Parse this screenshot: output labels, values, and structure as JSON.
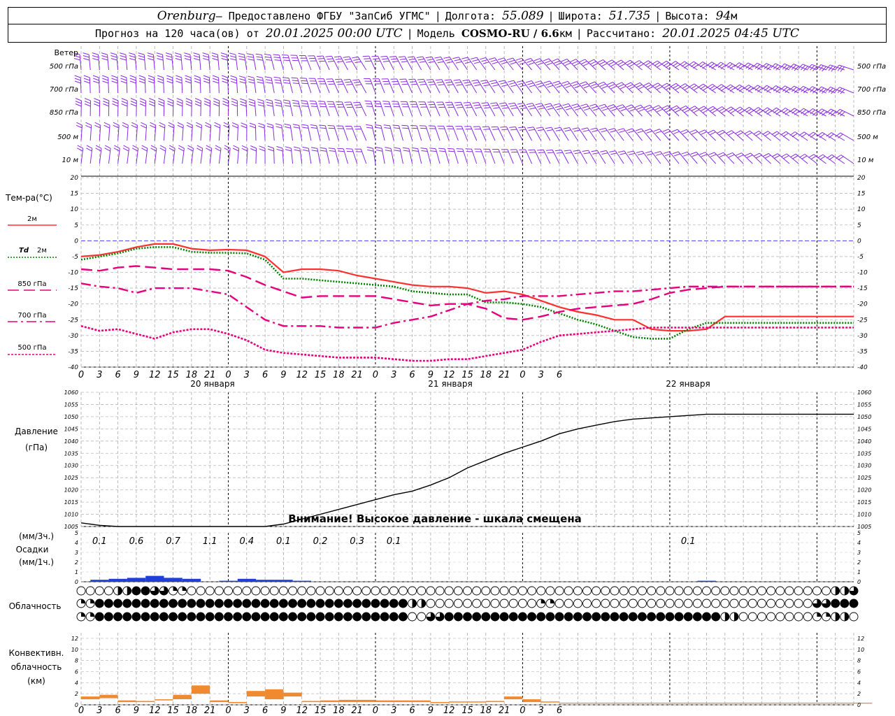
{
  "header": {
    "station": "Orenburg",
    "provided_by": " — Предоставлено ФГБУ \"ЗапСиб УГМС\"",
    "lon_label": "Долгота:",
    "lon_value": "55.089",
    "lat_label": "Широта:",
    "lat_value": "51.735",
    "alt_label": "Высота:",
    "alt_value": "94",
    "alt_unit": "м",
    "forecast_label": "Прогноз на 120 часа(ов) от",
    "forecast_from": "20.01.2025 00:00 UTC",
    "model_label": "Модель",
    "model_name": "COSMO-RU / 6.6",
    "model_unit": "км",
    "calc_label": "Рассчитано:",
    "calc_time": "20.01.2025 04:45 UTC"
  },
  "hour_ticks": [
    "0",
    "3",
    "6",
    "9",
    "12",
    "15",
    "18",
    "21",
    "0",
    "3",
    "6",
    "9",
    "12",
    "15",
    "18",
    "21",
    "0",
    "3",
    "6",
    "9",
    "12",
    "15",
    "18",
    "21",
    "0",
    "3",
    "6"
  ],
  "day_labels": [
    "20 января",
    "21 января",
    "22 января"
  ],
  "colors": {
    "t2m": "#ff3030",
    "td2m": "#008000",
    "t850": "#e6007e",
    "t700": "#e6007e",
    "t500": "#e6007e",
    "wind": "#8a2be2",
    "precip": "#1f3fd8",
    "conv": "#f08a30",
    "zero": "#4040ff"
  },
  "wind_panel": {
    "title": "Ветер",
    "levels": [
      "500 гПа",
      "700 гПа",
      "850 гПа",
      "500 м",
      "10  м"
    ]
  },
  "temp_panel": {
    "title": "Тем-ра(°С)",
    "legend": [
      {
        "name": "2м"
      },
      {
        "prefix": "Td",
        "name": "2м"
      },
      {
        "name": "850 гПа"
      },
      {
        "name": "700 гПа"
      },
      {
        "name": "500 гПа"
      }
    ],
    "yticks": [
      "20",
      "15",
      "10",
      "5",
      "0",
      "-5",
      "-10",
      "-15",
      "-20",
      "-25",
      "-30",
      "-35",
      "-40"
    ]
  },
  "pressure_panel": {
    "title_line1": "Давление",
    "title_line2": "(гПа)",
    "warning": "Внимание! Высокое давление - шкала смещена",
    "yticks": [
      "1060",
      "1055",
      "1050",
      "1045",
      "1040",
      "1035",
      "1030",
      "1025",
      "1020",
      "1015",
      "1010",
      "1005"
    ]
  },
  "precip_panel": {
    "label1": "(мм/3ч.)",
    "label2": "Осадки",
    "label3": "(мм/1ч.)",
    "yticks": [
      "5",
      "4",
      "3",
      "2",
      "1",
      "0"
    ],
    "totals": [
      {
        "hour": 3,
        "text": "0.1"
      },
      {
        "hour": 9,
        "text": "0.6"
      },
      {
        "hour": 15,
        "text": "0.7"
      },
      {
        "hour": 21,
        "text": "1.1"
      },
      {
        "hour": 27,
        "text": "0.4"
      },
      {
        "hour": 33,
        "text": "0.1"
      },
      {
        "hour": 39,
        "text": "0.2"
      },
      {
        "hour": 45,
        "text": "0.3"
      },
      {
        "hour": 51,
        "text": "0.1"
      },
      {
        "hour": 99,
        "text": "0.1"
      }
    ]
  },
  "cloud_panel": {
    "title": "Облачность"
  },
  "conv_panel": {
    "label1": "Конвективн.",
    "label2": "облачность",
    "label3": "(км)",
    "yticks": [
      "12",
      "10",
      "8",
      "6",
      "4",
      "2",
      "0"
    ]
  },
  "chart_data": {
    "x_unit": "hours since 20.01.2025 00:00 UTC",
    "x_range": [
      0,
      126
    ],
    "temperature": {
      "type": "line",
      "ylim": [
        -40,
        20
      ],
      "series": [
        {
          "name": "2м",
          "x": [
            0,
            3,
            6,
            9,
            12,
            15,
            18,
            21,
            24,
            27,
            30,
            33,
            36,
            39,
            42,
            45,
            48,
            51,
            54,
            57,
            60,
            63,
            66,
            69,
            72,
            75,
            78,
            81,
            84,
            87,
            90,
            93,
            96,
            99,
            102,
            105,
            108,
            111,
            114,
            117,
            120,
            123,
            126
          ],
          "values": [
            -5,
            -4.5,
            -3.5,
            -2,
            -1,
            -1,
            -2.5,
            -3,
            -2.8,
            -3,
            -5,
            -10,
            -9,
            -9,
            -9.5,
            -11,
            -12,
            -13,
            -14,
            -14.5,
            -14.5,
            -15,
            -16.5,
            -16,
            -17,
            -19,
            -21,
            -22.5,
            -23.5,
            -25,
            -25,
            -28,
            -28.5,
            -28.5,
            -28,
            -24,
            -24,
            -24,
            -24,
            -24,
            -24,
            -24,
            -24
          ]
        },
        {
          "name": "Td 2м",
          "x": [
            0,
            3,
            6,
            9,
            12,
            15,
            18,
            21,
            24,
            27,
            30,
            33,
            36,
            39,
            42,
            45,
            48,
            51,
            54,
            57,
            60,
            63,
            66,
            69,
            72,
            75,
            78,
            81,
            84,
            87,
            90,
            93,
            96,
            99,
            102,
            105,
            108,
            111,
            114,
            117,
            120,
            123,
            126
          ],
          "values": [
            -6,
            -5,
            -4,
            -2.5,
            -2,
            -2,
            -3.5,
            -3.8,
            -3.8,
            -4,
            -6,
            -12,
            -12,
            -12.5,
            -13,
            -13.5,
            -14,
            -14.5,
            -16,
            -16.5,
            -17,
            -17,
            -19.5,
            -19.5,
            -20,
            -21,
            -23,
            -25,
            -26.5,
            -28.5,
            -30.5,
            -31,
            -31,
            -28,
            -26,
            -26,
            -26,
            -26,
            -26,
            -26,
            -26,
            -26,
            -26
          ]
        },
        {
          "name": "850 гПа",
          "x": [
            0,
            3,
            6,
            9,
            12,
            15,
            18,
            21,
            24,
            27,
            30,
            33,
            36,
            39,
            42,
            45,
            48,
            51,
            54,
            57,
            60,
            63,
            66,
            69,
            72,
            75,
            78,
            81,
            84,
            87,
            90,
            93,
            96,
            99,
            102,
            105,
            108,
            111,
            114,
            117,
            120,
            123,
            126
          ],
          "values": [
            -9,
            -9.5,
            -8.5,
            -8,
            -8.5,
            -9,
            -9,
            -9,
            -9.5,
            -11.5,
            -14,
            -16,
            -18,
            -17.5,
            -17.5,
            -17.5,
            -17.5,
            -18.5,
            -19.5,
            -20.5,
            -20,
            -20,
            -21.5,
            -24.5,
            -25,
            -24,
            -22.5,
            -21.5,
            -21,
            -20.5,
            -20,
            -18.5,
            -16.5,
            -15.5,
            -15,
            -14.5,
            -14.5,
            -14.5,
            -14.5,
            -14.5,
            -14.5,
            -14.5,
            -14.5
          ]
        },
        {
          "name": "700 гПа",
          "x": [
            0,
            3,
            6,
            9,
            12,
            15,
            18,
            21,
            24,
            27,
            30,
            33,
            36,
            39,
            42,
            45,
            48,
            51,
            54,
            57,
            60,
            63,
            66,
            69,
            72,
            75,
            78,
            81,
            84,
            87,
            90,
            93,
            96,
            99,
            102,
            105,
            108,
            111,
            114,
            117,
            120,
            123,
            126
          ],
          "values": [
            -13.5,
            -14.5,
            -15,
            -16.5,
            -15,
            -15,
            -15,
            -16,
            -17,
            -21,
            -25,
            -27,
            -27,
            -27,
            -27.5,
            -27.5,
            -27.5,
            -26,
            -25,
            -24,
            -22,
            -20,
            -19,
            -18.5,
            -17.5,
            -17.5,
            -17.5,
            -17,
            -16.5,
            -16,
            -16,
            -15.5,
            -15,
            -14.5,
            -14.5,
            -14.5,
            -14.5,
            -14.5,
            -14.5,
            -14.5,
            -14.5,
            -14.5,
            -14.5
          ]
        },
        {
          "name": "500 гПа",
          "x": [
            0,
            3,
            6,
            9,
            12,
            15,
            18,
            21,
            24,
            27,
            30,
            33,
            36,
            39,
            42,
            45,
            48,
            51,
            54,
            57,
            60,
            63,
            66,
            69,
            72,
            75,
            78,
            81,
            84,
            87,
            90,
            93,
            96,
            99,
            102,
            105,
            108,
            111,
            114,
            117,
            120,
            123,
            126
          ],
          "values": [
            -27,
            -28.5,
            -28,
            -29.5,
            -31,
            -29,
            -28,
            -28,
            -29.5,
            -31.5,
            -34.5,
            -35.5,
            -36,
            -36.5,
            -37,
            -37,
            -37,
            -37.5,
            -38,
            -38,
            -37.5,
            -37.5,
            -36.5,
            -35.5,
            -34.5,
            -32,
            -30,
            -29.5,
            -29,
            -28.5,
            -28,
            -27.5,
            -27.5,
            -27.5,
            -27.5,
            -27.5,
            -27.5,
            -27.5,
            -27.5,
            -27.5,
            -27.5,
            -27.5,
            -27.5
          ]
        }
      ]
    },
    "pressure": {
      "type": "line",
      "ylim": [
        1005,
        1060
      ],
      "series": [
        {
          "name": "Давление",
          "x": [
            0,
            3,
            6,
            9,
            12,
            15,
            18,
            21,
            24,
            27,
            30,
            33,
            36,
            39,
            42,
            45,
            48,
            51,
            54,
            57,
            60,
            63,
            66,
            69,
            72,
            75,
            78,
            81,
            84,
            87,
            90,
            93,
            96,
            99,
            102,
            105,
            108,
            111,
            114,
            117,
            120,
            123,
            126
          ],
          "values": [
            1006.5,
            1005.5,
            1005,
            1004.5,
            1004,
            1003.5,
            1003.5,
            1003.5,
            1003.5,
            1003,
            1004,
            1006,
            1008,
            1010,
            1012,
            1014,
            1016,
            1018,
            1019.5,
            1022,
            1025,
            1029,
            1032,
            1035,
            1037.5,
            1040,
            1043,
            1045,
            1046.5,
            1048,
            1049,
            1049.5,
            1050,
            1050.5,
            1051,
            1051,
            1051,
            1051,
            1051,
            1051,
            1051,
            1051,
            1051
          ]
        }
      ]
    },
    "precipitation_hourly": {
      "type": "bar",
      "ylim": [
        0,
        5
      ],
      "x": [
        0,
        3,
        6,
        9,
        12,
        15,
        18,
        21,
        24,
        27,
        30,
        33,
        36,
        39,
        42,
        45,
        48,
        51,
        54,
        57,
        60,
        63,
        66,
        69,
        72,
        75,
        78,
        81,
        84,
        87,
        90,
        93,
        96,
        99,
        102,
        105,
        108,
        111,
        114,
        117,
        120,
        123,
        126
      ],
      "values": [
        0,
        0.2,
        0.3,
        0.4,
        0.6,
        0.4,
        0.3,
        0,
        0.1,
        0.3,
        0.2,
        0.2,
        0.1,
        0,
        0,
        0,
        0,
        0,
        0,
        0,
        0,
        0,
        0,
        0,
        0,
        0,
        0,
        0,
        0,
        0,
        0,
        0,
        0,
        0,
        0.1,
        0,
        0,
        0,
        0,
        0,
        0,
        0,
        0
      ]
    },
    "cloud_cover": {
      "type": "table",
      "rows": [
        "low",
        "middle",
        "high"
      ],
      "x": [
        0,
        3,
        6,
        9,
        12,
        15,
        18,
        21,
        24,
        27,
        30,
        33,
        36,
        39,
        42,
        45,
        48,
        51,
        54,
        57,
        60,
        63,
        66,
        69,
        72,
        75,
        78,
        81,
        84,
        87,
        90,
        93,
        96,
        99,
        102,
        105,
        108,
        111,
        114,
        117,
        120,
        123,
        126
      ],
      "fraction_per_row": [
        [
          0,
          0,
          0.5,
          1,
          0.75,
          0.25,
          0,
          0,
          0,
          0,
          0,
          0,
          0,
          0,
          0,
          0,
          0,
          0,
          0,
          0,
          0,
          0,
          0,
          0,
          0,
          0,
          0,
          0,
          0,
          0,
          0,
          0,
          0,
          0,
          0,
          0,
          0,
          0,
          0,
          0,
          0,
          0.5,
          0.75
        ],
        [
          0.25,
          1,
          1,
          1,
          1,
          1,
          1,
          1,
          1,
          1,
          1,
          1,
          1,
          1,
          1,
          1,
          1,
          1,
          0.5,
          0,
          0,
          0,
          0,
          0,
          0,
          0.25,
          0,
          0,
          0,
          0,
          0,
          0,
          0,
          0,
          0,
          0,
          0,
          0,
          0,
          0,
          0.75,
          1,
          1
        ],
        [
          0.25,
          1,
          1,
          1,
          1,
          1,
          1,
          1,
          1,
          1,
          1,
          1,
          1,
          1,
          1,
          1,
          1,
          1,
          0,
          0.75,
          1,
          1,
          1,
          1,
          1,
          1,
          1,
          1,
          1,
          1,
          1,
          1,
          1,
          1,
          1,
          0.5,
          0,
          0,
          0,
          0,
          0.25,
          0.5,
          0
        ]
      ]
    },
    "convective_cloud": {
      "type": "bar",
      "ylim": [
        0,
        13
      ],
      "x": [
        0,
        3,
        6,
        9,
        12,
        15,
        18,
        21,
        24,
        27,
        30,
        33,
        36,
        39,
        42,
        45,
        48,
        51,
        54,
        57,
        60,
        63,
        66,
        69,
        72,
        75,
        78,
        81,
        84,
        87,
        90,
        93,
        96,
        99,
        102,
        105,
        108,
        111,
        114,
        117,
        120,
        123,
        126
      ],
      "base_km": [
        1,
        1.2,
        0.5,
        0.5,
        0.8,
        1,
        2,
        0.5,
        0.3,
        1.5,
        1,
        1.5,
        0.5,
        0.5,
        0.5,
        0.5,
        0.5,
        0.5,
        0.5,
        0.5,
        0.5,
        0.5,
        0.5,
        1,
        0.5,
        0.5,
        0.3,
        0.3,
        0.3,
        0.3,
        0.3,
        0.3,
        0.3,
        0.3,
        0.3,
        0.3,
        0.3,
        0.3,
        0.3,
        0.3,
        0.3,
        0.3,
        0.3
      ],
      "top_km": [
        1.5,
        1.8,
        0.8,
        0.7,
        1,
        1.8,
        3.5,
        0.8,
        0.5,
        2.5,
        2.8,
        2.2,
        0.7,
        0.8,
        0.9,
        0.9,
        0.8,
        0.8,
        0.8,
        0.5,
        0.6,
        0.6,
        0.7,
        1.5,
        1,
        0.6,
        0.3,
        0.3,
        0.3,
        0.3,
        0.3,
        0.3,
        0.3,
        0.3,
        0.3,
        0.3,
        0.3,
        0.3,
        0.3,
        0.3,
        0.3,
        0.3,
        0.3
      ]
    }
  }
}
